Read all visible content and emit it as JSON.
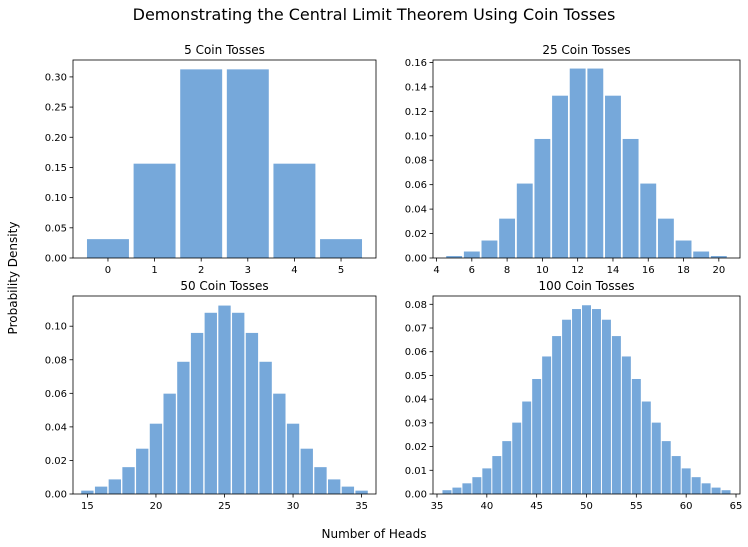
{
  "suptitle": "Demonstrating the Central Limit Theorem Using Coin Tosses",
  "xlabel": "Number of Heads",
  "ylabel": "Probability Density",
  "bar_color": "#76A8DA",
  "chart_data": [
    {
      "type": "bar",
      "title": "5 Coin Tosses",
      "x": [
        0,
        1,
        2,
        3,
        4,
        5
      ],
      "values": [
        0.03125,
        0.15625,
        0.3125,
        0.3125,
        0.15625,
        0.03125
      ],
      "xlim": [
        -0.75,
        5.75
      ],
      "ylim": [
        0,
        0.328
      ],
      "xticks": [
        0,
        1,
        2,
        3,
        4,
        5
      ],
      "yticks": [
        0,
        0.05,
        0.1,
        0.15,
        0.2,
        0.25,
        0.3
      ],
      "xtick_labels": [
        "0",
        "1",
        "2",
        "3",
        "4",
        "5"
      ],
      "ytick_labels": [
        "0.00",
        "0.05",
        "0.10",
        "0.15",
        "0.20",
        "0.25",
        "0.30"
      ],
      "grid": false
    },
    {
      "type": "bar",
      "title": "25 Coin Tosses",
      "x": [
        5,
        6,
        7,
        8,
        9,
        10,
        11,
        12,
        13,
        14,
        15,
        16,
        17,
        18,
        19,
        20
      ],
      "values": [
        0.0016,
        0.0053,
        0.0143,
        0.0322,
        0.0609,
        0.0974,
        0.1328,
        0.155,
        0.155,
        0.1328,
        0.0974,
        0.0609,
        0.0322,
        0.0143,
        0.0053,
        0.0016
      ],
      "xlim": [
        3.8,
        21.2
      ],
      "ylim": [
        0,
        0.162
      ],
      "xticks": [
        4,
        6,
        8,
        10,
        12,
        14,
        16,
        18,
        20
      ],
      "yticks": [
        0,
        0.02,
        0.04,
        0.06,
        0.08,
        0.1,
        0.12,
        0.14,
        0.16
      ],
      "xtick_labels": [
        "4",
        "6",
        "8",
        "10",
        "12",
        "14",
        "16",
        "18",
        "20"
      ],
      "ytick_labels": [
        "0.00",
        "0.02",
        "0.04",
        "0.06",
        "0.08",
        "0.10",
        "0.12",
        "0.14",
        "0.16"
      ],
      "grid": false
    },
    {
      "type": "bar",
      "title": "50 Coin Tosses",
      "x": [
        15,
        16,
        17,
        18,
        19,
        20,
        21,
        22,
        23,
        24,
        25,
        26,
        27,
        28,
        29,
        30,
        31,
        32,
        33,
        34,
        35
      ],
      "values": [
        0.002,
        0.0044,
        0.0087,
        0.016,
        0.027,
        0.0419,
        0.0598,
        0.0788,
        0.096,
        0.108,
        0.1123,
        0.108,
        0.096,
        0.0788,
        0.0598,
        0.0419,
        0.027,
        0.016,
        0.0087,
        0.0044,
        0.002
      ],
      "xlim": [
        13.95,
        36.05
      ],
      "ylim": [
        0,
        0.118
      ],
      "xticks": [
        15,
        20,
        25,
        30,
        35
      ],
      "yticks": [
        0,
        0.02,
        0.04,
        0.06,
        0.08,
        0.1
      ],
      "xtick_labels": [
        "15",
        "20",
        "25",
        "30",
        "35"
      ],
      "ytick_labels": [
        "0.00",
        "0.02",
        "0.04",
        "0.06",
        "0.08",
        "0.10"
      ],
      "grid": false
    },
    {
      "type": "bar",
      "title": "100 Coin Tosses",
      "x": [
        36,
        37,
        38,
        39,
        40,
        41,
        42,
        43,
        44,
        45,
        46,
        47,
        48,
        49,
        50,
        51,
        52,
        53,
        54,
        55,
        56,
        57,
        58,
        59,
        60,
        61,
        62,
        63,
        64
      ],
      "values": [
        0.0016,
        0.0027,
        0.0045,
        0.0071,
        0.0108,
        0.016,
        0.0223,
        0.0301,
        0.039,
        0.0485,
        0.058,
        0.0666,
        0.0735,
        0.078,
        0.0796,
        0.078,
        0.0735,
        0.0666,
        0.058,
        0.0485,
        0.039,
        0.0301,
        0.0223,
        0.016,
        0.0108,
        0.0071,
        0.0045,
        0.0027,
        0.0016
      ],
      "xlim": [
        34.6,
        65.4
      ],
      "ylim": [
        0,
        0.0835
      ],
      "xticks": [
        35,
        40,
        45,
        50,
        55,
        60,
        65
      ],
      "yticks": [
        0,
        0.01,
        0.02,
        0.03,
        0.04,
        0.05,
        0.06,
        0.07,
        0.08
      ],
      "xtick_labels": [
        "35",
        "40",
        "45",
        "50",
        "55",
        "60",
        "65"
      ],
      "ytick_labels": [
        "0.00",
        "0.01",
        "0.02",
        "0.03",
        "0.04",
        "0.05",
        "0.06",
        "0.07",
        "0.08"
      ],
      "grid": false
    }
  ]
}
